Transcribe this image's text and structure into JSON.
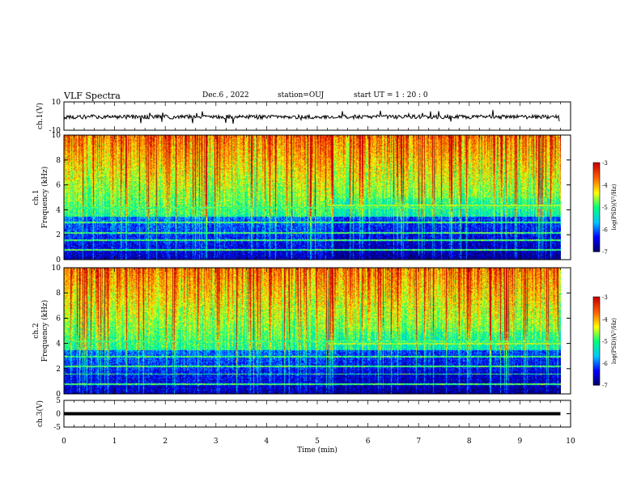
{
  "header": {
    "title": "VLF Spectra",
    "date": "Dec.6 , 2022",
    "station": "station=OUJ",
    "start": "start UT = 1 : 20 : 0"
  },
  "chart_data": [
    {
      "type": "line",
      "panel": "ch1-waveform",
      "ylabel": "ch.1(V)",
      "ylim": [
        -10,
        10
      ],
      "y_ticks": [
        "10",
        "-10"
      ],
      "xlim": [
        0,
        10
      ],
      "baseline": 0,
      "color": "#000000"
    },
    {
      "type": "heatmap",
      "panel": "ch1-spectrogram",
      "ylabel": "ch.1 Frequency (kHz)",
      "ylim": [
        0,
        10
      ],
      "y_ticks": [
        "0",
        "2",
        "4",
        "6",
        "8",
        "10"
      ],
      "xlim": [
        0,
        10
      ],
      "colorbar": {
        "label": "log(PSD)(V²/Hz)",
        "range": [
          -7,
          -3
        ],
        "ticks": [
          "-3",
          "-4",
          "-5",
          "-6",
          "-7"
        ]
      }
    },
    {
      "type": "heatmap",
      "panel": "ch2-spectrogram",
      "ylabel": "ch.2 Frequency (kHz)",
      "ylim": [
        0,
        10
      ],
      "y_ticks": [
        "0",
        "2",
        "4",
        "6",
        "8",
        "10"
      ],
      "xlim": [
        0,
        10
      ],
      "colorbar": {
        "label": "log(PSD)(V²/Hz)",
        "range": [
          -7,
          -3
        ],
        "ticks": [
          "-3",
          "-4",
          "-5",
          "-6",
          "-7"
        ]
      }
    },
    {
      "type": "line",
      "panel": "ch3-waveform",
      "ylabel": "ch.3(V)",
      "ylim": [
        -5,
        5
      ],
      "y_ticks": [
        "5",
        "0",
        "-5"
      ],
      "xlim": [
        0,
        10
      ],
      "x": [
        0,
        9.8
      ],
      "y": [
        0,
        0
      ],
      "color": "#000000"
    }
  ],
  "x_axis": {
    "label": "Time (min)",
    "ticks": [
      "0",
      "1",
      "2",
      "3",
      "4",
      "5",
      "6",
      "7",
      "8",
      "9",
      "10"
    ]
  },
  "colormap": [
    "#000060",
    "#0000ff",
    "#00c8ff",
    "#00ff80",
    "#ffff00",
    "#ff6000",
    "#c80000",
    "#ffffff"
  ]
}
